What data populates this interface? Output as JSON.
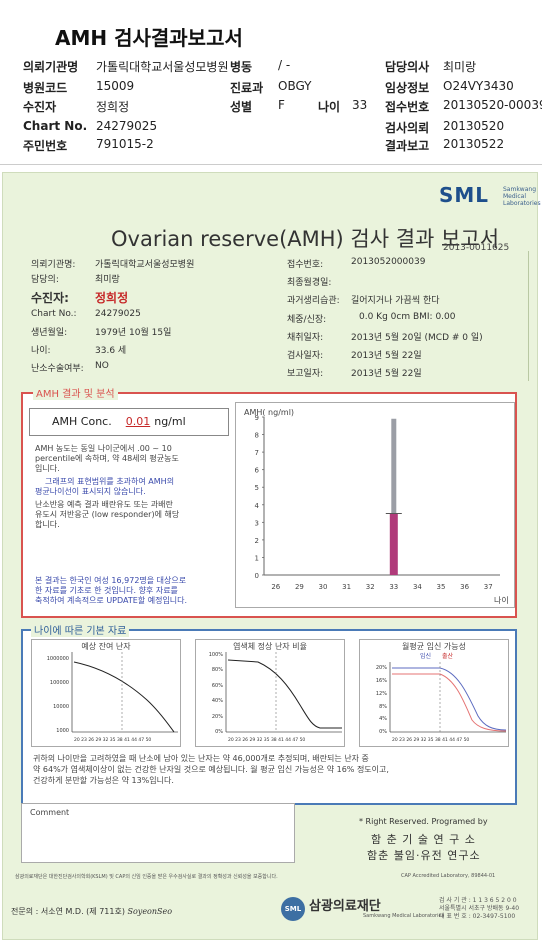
{
  "header": {
    "title": "AMH 검사결과보고서",
    "rows": [
      {
        "l1": "의뢰기관명",
        "v1": "가톨릭대학교서울성모병원",
        "l2": "병동",
        "v2": "/ -",
        "l3": "담당의사",
        "v3": "최미랑"
      },
      {
        "l1": "병원코드",
        "v1": "15009",
        "l2": "진료과",
        "v2": "OBGY",
        "l3": "임상정보",
        "v3": "O24VY3430"
      },
      {
        "l1": "수진자",
        "v1": "정희정",
        "l2": "성별",
        "v2": "F",
        "l2b": "나이",
        "v2b": "33",
        "l3": "접수번호",
        "v3": "20130520-00039"
      },
      {
        "l1": "Chart No.",
        "v1": "24279025",
        "l3": "검사의뢰",
        "v3": "20130520"
      },
      {
        "l1": "주민번호",
        "v1": "791015-2",
        "l3": "결과보고",
        "v3": "20130522"
      }
    ]
  },
  "report": {
    "logo": "SML",
    "logo_sub": "Samkwang Medical Laboratories",
    "title": "Ovarian reserve(AMH) 검사 결과 보고서",
    "report_no": "2013-0011625",
    "left_info": [
      {
        "label": "의뢰기관명:",
        "value": "가톨릭대학교서울성모병원"
      },
      {
        "label": "담당의:",
        "value": "최미랑"
      },
      {
        "label": "수진자:",
        "value": "정희정"
      },
      {
        "label": "Chart No.:",
        "value": "24279025"
      },
      {
        "label": "생년월일:",
        "value": "1979년 10월 15일"
      },
      {
        "label": "나이:",
        "value": "33.6 세"
      },
      {
        "label": "난소수술여부:",
        "value": "NO"
      }
    ],
    "right_info": [
      {
        "label": "접수번호:",
        "value": "2013052000039"
      },
      {
        "label": "최종월경일:",
        "value": ""
      },
      {
        "label": "과거생리습관:",
        "value": "길어지거나 가끔씩 한다"
      },
      {
        "label": "체중/신장:",
        "value": "0.0  Kg       0cm    BMI:    0.00"
      },
      {
        "label": "채취일자:",
        "value": "2013년  5월 20일   (MCD #  0 일)"
      },
      {
        "label": "검사일자:",
        "value": "2013년 5월 22일"
      },
      {
        "label": "보고일자:",
        "value": "2013년 5월 22일"
      }
    ]
  },
  "amh": {
    "section_label": "AMH 결과 및 분석",
    "conc_label": "AMH Conc.",
    "conc_value": "0.01",
    "conc_unit": "ng/ml",
    "text1": "AMH 농도는 동일 나이군에서  .00 ~  10",
    "text2": "percentile에 속하며, 약   48세의 평균농도",
    "text3": "입니다.",
    "text4": "그래프의 표현범위를 초과하여 AMH의",
    "text5": "평균나이선이 표시되지 않습니다.",
    "text6": "난소반응 예측 결과 배란유도 또는 과배란",
    "text7": "유도시 저반응군 (low responder)에 해당",
    "text8": "합니다.",
    "foot1": "본 결과는 한국인 여성 16,972명을 대상으로",
    "foot2": "한 자료를 기초로 한 것입니다. 향후 자료를",
    "foot3": "축적하여 계속적으로 UPDATE할 예정입니다."
  },
  "chart_data": {
    "type": "bar",
    "ylabel": "AMH( ng/ml)",
    "xlabel": "나이",
    "categories": [
      "26",
      "29",
      "30",
      "31",
      "32",
      "33",
      "34",
      "35",
      "36",
      "37"
    ],
    "ylim": [
      0,
      9
    ],
    "yticks": [
      "0",
      "1",
      "2",
      "3",
      "4",
      "5",
      "6",
      "7",
      "8",
      "9"
    ],
    "series": [
      {
        "values": [
          0,
          0,
          0,
          0,
          0,
          8.9,
          0,
          0,
          0,
          0
        ],
        "color": "#9b9ea6"
      },
      {
        "values": [
          0,
          0,
          0,
          0,
          0,
          3.5,
          0,
          0,
          0,
          0
        ],
        "color": "#b03a7a"
      }
    ]
  },
  "age": {
    "section_label": "나이에 따른 기본 자료",
    "chart1_title": "예상 잔여 난자",
    "chart1_yticks": [
      "1000000",
      "100000",
      "10000",
      "1000"
    ],
    "chart2_title": "염색체 정상 난자 비율",
    "chart2_yticks": [
      "100%",
      "80%",
      "60%",
      "40%",
      "20%",
      "0%"
    ],
    "chart3_title": "월평균 임신 가능성",
    "chart3_legend1": "임신",
    "chart3_legend2": "출산",
    "chart3_yticks": [
      "20%",
      "16%",
      "12%",
      "8%",
      "4%",
      "0%"
    ],
    "xticks": "20 23 26 29 32 35 38 41 44 47 50",
    "text1": "귀하의 나이만을 고려하였을 때 난소에 남아 있는 난자는 약      46,000개로 추정되며, 배란되는 난자 중",
    "text2": "약   64%가 염색체이상이 없는 건강한 난자일 것으로 예상됩니다. 월 평균 임신 가능성은 약   16% 정도이고,",
    "text3": "건강하게 분만할 가능성은 약   13%입니다."
  },
  "comment": {
    "label": "Comment",
    "rights": "* Right Reserved. Programed by",
    "lab1": "함 춘  기 술  연 구 소",
    "lab2": "함춘 불임·유전 연구소"
  },
  "footer": {
    "note": "삼광의료재단은 대한진단검사의학회(KSLM) 및 CAP의 신임 인증을 받은 우수검사실로 결과의 정확성과 신뢰성을 보증합니다.",
    "cap": "CAP  Accredited  Laboratory,  89844-01",
    "signer": "전문의 : 서소연 M.D. (제 711호)",
    "signature": "SoyeonSeo",
    "corp": "삼광의료재단",
    "corp_sub": "Samkwang Medical Laboratories",
    "contact1": "검 사 기 관 : 1 1 3 6 5 2 0 0",
    "contact2": "서울특별시 서초구 방배동 9-40",
    "contact3": "대 표 번 호 : 02-3497-5100"
  }
}
